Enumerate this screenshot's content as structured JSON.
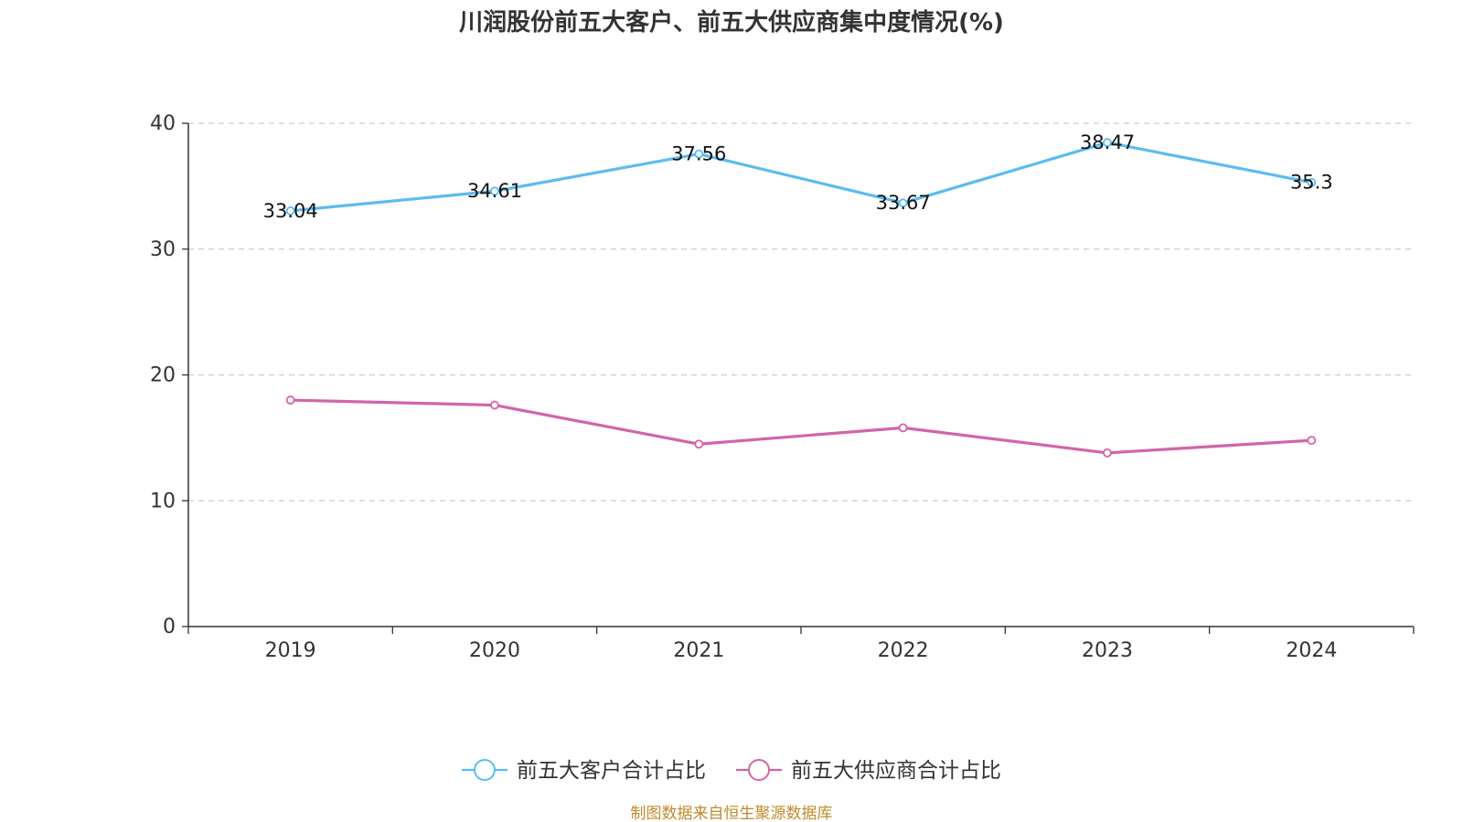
{
  "chart_data": {
    "type": "line",
    "title": "川润股份前五大客户、前五大供应商集中度情况(%)",
    "categories": [
      "2019",
      "2020",
      "2021",
      "2022",
      "2023",
      "2024"
    ],
    "ylim": [
      0,
      40
    ],
    "yticks": [
      "0",
      "10",
      "20",
      "30",
      "40"
    ],
    "grid": true,
    "legend_position": "bottom",
    "series": [
      {
        "name": "前五大客户合计占比",
        "color": "#5bbcf0",
        "values": [
          33.04,
          34.61,
          37.56,
          33.67,
          38.47,
          35.3
        ],
        "labels": [
          "33.04",
          "34.61",
          "37.56",
          "33.67",
          "38.47",
          "35.3"
        ]
      },
      {
        "name": "前五大供应商合计占比",
        "color": "#d264aa",
        "values": [
          18.0,
          17.6,
          14.5,
          15.8,
          13.8,
          14.8
        ],
        "labels": []
      }
    ]
  },
  "source": "制图数据来自恒生聚源数据库"
}
